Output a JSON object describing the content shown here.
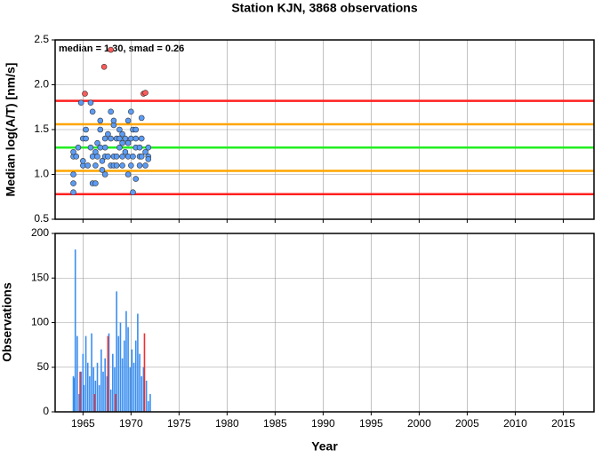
{
  "chart_data": [
    {
      "type": "scatter",
      "title": "Station KJN, 3868 observations",
      "y_label": "Median log(A/T) [nm/s]",
      "annotation": "median = 1.30, smad = 0.26",
      "xlim": [
        1962.1,
        2018.2
      ],
      "xticks": [
        1965,
        1970,
        1975,
        1980,
        1985,
        1990,
        1995,
        2000,
        2005,
        2010,
        2015
      ],
      "ylim": [
        0.5,
        2.5
      ],
      "yticks": [
        {
          "value": 0.5,
          "label": "0.5"
        },
        {
          "value": 1,
          "label": "1.0"
        },
        {
          "value": 1.5,
          "label": "1.5"
        },
        {
          "value": 2,
          "label": "2.0"
        },
        {
          "value": 2.5,
          "label": "2.5"
        }
      ],
      "grid": true,
      "hlines": [
        {
          "value": 1.82,
          "color": "#ff2020"
        },
        {
          "value": 1.56,
          "color": "#ffa500"
        },
        {
          "value": 1.3,
          "color": "#22ee22"
        },
        {
          "value": 1.04,
          "color": "#ffa500"
        },
        {
          "value": 0.78,
          "color": "#ff2020"
        }
      ],
      "series": [
        {
          "color": "#5c9cf5",
          "x": [
            1964.0,
            1964.0,
            1964.0,
            1964.0,
            1964.0,
            1964.3,
            1964.5,
            1964.8,
            1965.0,
            1965.0,
            1965.0,
            1965.3,
            1965.3,
            1965.5,
            1965.8,
            1965.8,
            1966.0,
            1966.0,
            1966.0,
            1966.3,
            1966.3,
            1966.3,
            1966.5,
            1966.5,
            1966.8,
            1966.8,
            1966.8,
            1967.0,
            1967.0,
            1967.3,
            1967.3,
            1967.3,
            1967.3,
            1967.6,
            1967.6,
            1967.9,
            1967.9,
            1967.9,
            1968.2,
            1968.2,
            1968.2,
            1968.2,
            1968.5,
            1968.5,
            1968.5,
            1968.8,
            1968.8,
            1968.8,
            1969.1,
            1969.1,
            1969.1,
            1969.1,
            1969.4,
            1969.4,
            1969.7,
            1969.7,
            1969.7,
            1969.7,
            1970.0,
            1970.0,
            1970.0,
            1970.2,
            1970.2,
            1970.2,
            1970.5,
            1970.5,
            1970.5,
            1970.5,
            1970.9,
            1970.9,
            1970.9,
            1971.1,
            1971.1,
            1971.1,
            1971.5,
            1971.5,
            1971.8,
            1971.8,
            1971.8
          ],
          "values": [
            0.8,
            0.9,
            1.0,
            1.2,
            1.25,
            1.2,
            1.3,
            1.8,
            1.1,
            1.15,
            1.4,
            1.4,
            1.5,
            1.1,
            1.3,
            1.8,
            0.9,
            1.2,
            1.7,
            1.1,
            1.25,
            0.9,
            1.35,
            1.2,
            1.6,
            1.5,
            1.3,
            1.15,
            1.05,
            1.0,
            1.2,
            1.4,
            1.3,
            1.45,
            1.2,
            1.7,
            1.4,
            1.1,
            1.55,
            1.6,
            1.2,
            1.1,
            1.4,
            1.2,
            1.1,
            1.3,
            1.4,
            1.5,
            1.35,
            1.2,
            1.1,
            1.45,
            1.4,
            1.25,
            1.35,
            1.6,
            1.2,
            1.0,
            1.7,
            1.4,
            1.1,
            0.8,
            1.2,
            1.5,
            1.4,
            1.3,
            1.5,
            0.95,
            1.2,
            1.1,
            1.3,
            1.63,
            1.4,
            1.2,
            1.25,
            1.1,
            1.3,
            1.2,
            1.17
          ]
        },
        {
          "color": "#ff5a5a",
          "x": [
            1965.2,
            1967.2,
            1967.9,
            1971.3,
            1971.5
          ],
          "values": [
            1.9,
            2.2,
            2.39,
            1.9,
            1.91
          ]
        }
      ]
    },
    {
      "type": "bar",
      "x_label": "Year",
      "y_label": "Observations",
      "xlim": [
        1962.1,
        2018.2
      ],
      "xticks": [
        1965,
        1970,
        1975,
        1980,
        1985,
        1990,
        1995,
        2000,
        2005,
        2010,
        2015
      ],
      "ylim": [
        0,
        200
      ],
      "yticks": [
        0,
        50,
        100,
        150,
        200
      ],
      "grid": true,
      "series": [
        {
          "color": "#3a8ef0",
          "x": [
            1964.0,
            1964.1,
            1964.2,
            1964.4,
            1964.6,
            1964.8,
            1965.0,
            1965.1,
            1965.3,
            1965.5,
            1965.7,
            1965.9,
            1966.1,
            1966.3,
            1966.5,
            1966.7,
            1966.9,
            1967.1,
            1967.3,
            1967.5,
            1967.7,
            1967.9,
            1968.1,
            1968.3,
            1968.5,
            1968.7,
            1968.9,
            1969.1,
            1969.3,
            1969.5,
            1969.7,
            1969.9,
            1970.1,
            1970.3,
            1970.5,
            1970.7,
            1970.9,
            1971.1,
            1971.3,
            1971.6,
            1971.8,
            1972.0
          ],
          "values": [
            40,
            38,
            182,
            85,
            20,
            45,
            65,
            30,
            85,
            55,
            40,
            88,
            50,
            35,
            55,
            30,
            70,
            45,
            60,
            40,
            88,
            25,
            65,
            50,
            135,
            85,
            100,
            60,
            80,
            113,
            95,
            50,
            70,
            55,
            80,
            110,
            65,
            40,
            50,
            35,
            12,
            20
          ]
        },
        {
          "color": "#ee3030",
          "x": [
            1964.7,
            1966.2,
            1967.6,
            1968.4,
            1971.4
          ],
          "values": [
            45,
            20,
            85,
            20,
            88
          ]
        }
      ]
    }
  ]
}
